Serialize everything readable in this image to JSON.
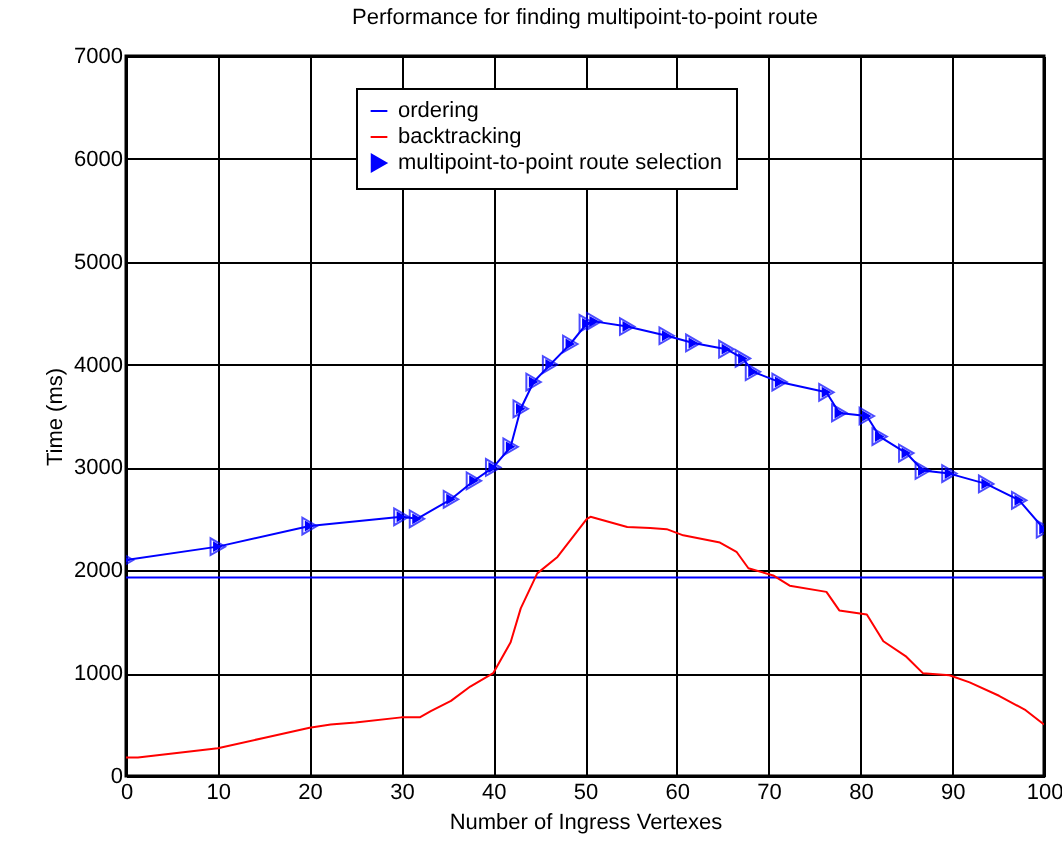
{
  "chart_data": {
    "type": "line",
    "title": "Performance for finding multipoint-to-point route",
    "xlabel": "Number of Ingress Vertexes",
    "ylabel": "Time (ms)",
    "xlim": [
      0,
      100
    ],
    "xticks": [
      0,
      10,
      20,
      30,
      40,
      50,
      60,
      70,
      80,
      90,
      100
    ],
    "ylim": [
      0,
      7000
    ],
    "yticks": [
      0,
      1000,
      2000,
      3000,
      4000,
      5000,
      6000,
      7000
    ],
    "grid": true,
    "legend": "top",
    "series": [
      {
        "name": "ordering",
        "color": "#0000ff",
        "x": [
          0,
          100
        ],
        "values": [
          1930,
          1930
        ]
      },
      {
        "name": "backtracking",
        "color": "#ff0000",
        "x": [
          0,
          1.3,
          10,
          15,
          20,
          22.3,
          25,
          30,
          32,
          33.2,
          35.4,
          37.5,
          40,
          41.9,
          43,
          44.8,
          47,
          50.2,
          50.6,
          54.6,
          57.1,
          58.9,
          60.7,
          64.7,
          66.5,
          67.8,
          70.5,
          72.3,
          76.3,
          77.7,
          80.7,
          82.5,
          85,
          86.8,
          89.7,
          91.9,
          95.1,
          98,
          100
        ],
        "values": [
          180,
          180,
          270,
          370,
          470,
          500,
          520,
          570,
          570,
          630,
          730,
          870,
          1000,
          1300,
          1630,
          1970,
          2130,
          2500,
          2520,
          2420,
          2410,
          2400,
          2340,
          2270,
          2180,
          2020,
          1950,
          1850,
          1790,
          1610,
          1570,
          1310,
          1160,
          1000,
          980,
          910,
          780,
          640,
          500
        ]
      },
      {
        "name": "multipoint-to-point route selection",
        "color": "#0000ff",
        "marker": "triangle",
        "x": [
          0,
          10,
          20,
          30,
          31.7,
          35.4,
          37.9,
          40,
          41.9,
          43,
          44.4,
          46.2,
          48.4,
          50.2,
          51,
          54.6,
          58.9,
          61.8,
          65.4,
          67.2,
          68.3,
          71.2,
          76.3,
          77.7,
          80.7,
          82.1,
          85,
          86.8,
          89.7,
          93.7,
          97.3,
          100
        ],
        "values": [
          2100,
          2230,
          2430,
          2520,
          2500,
          2690,
          2870,
          3000,
          3200,
          3570,
          3830,
          4000,
          4200,
          4400,
          4420,
          4370,
          4280,
          4210,
          4150,
          4060,
          3930,
          3830,
          3730,
          3530,
          3500,
          3300,
          3140,
          2970,
          2940,
          2840,
          2680,
          2400
        ]
      }
    ]
  }
}
